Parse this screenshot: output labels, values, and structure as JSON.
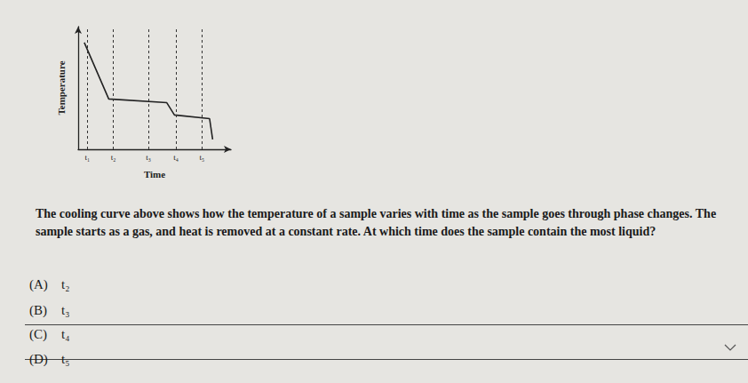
{
  "chart_data": {
    "type": "line",
    "x": [
      4,
      20,
      58,
      63,
      86,
      88
    ],
    "values": [
      87,
      41,
      38,
      28,
      25,
      8
    ],
    "color": "#222222",
    "xlabel": "Time",
    "ylabel": "Temperature",
    "xlim": [
      0,
      100
    ],
    "xticks": [
      {
        "value": 6,
        "label": "t₁"
      },
      {
        "value": 23,
        "label": "t₂"
      },
      {
        "value": 46,
        "label": "t₃"
      },
      {
        "value": 64,
        "label": "t₄"
      },
      {
        "value": 81,
        "label": "t₅"
      }
    ],
    "ylim": [
      0,
      100
    ],
    "yticks": [],
    "tick_labels": "x",
    "grid": true,
    "marker": "none",
    "line_style": "solid"
  },
  "question": "The cooling curve above shows how the temperature of a sample varies with time as the sample goes through phase changes. The sample starts as a gas, and heat is removed at a constant rate. At which time does the sample contain the most liquid?",
  "options": [
    {
      "letter": "(A)",
      "text": "t₂"
    },
    {
      "letter": "(B)",
      "text": "t₃"
    },
    {
      "letter": "(C)",
      "text": "t₄"
    },
    {
      "letter": "(D)",
      "text": "t₅"
    }
  ]
}
